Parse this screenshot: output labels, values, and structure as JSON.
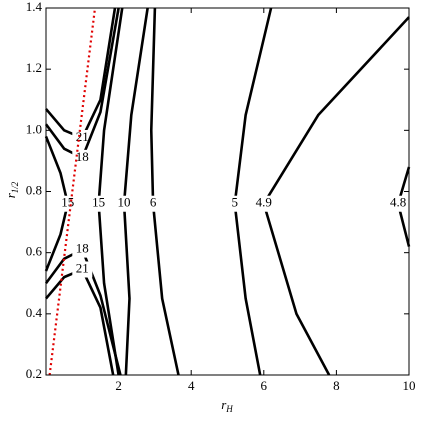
{
  "chart_data": {
    "type": "contour",
    "xlabel": "r",
    "xlabel_sub": "H",
    "ylabel": "r",
    "ylabel_sub": "1/2",
    "xlim": [
      0,
      10
    ],
    "xticks": [
      2,
      4,
      6,
      8,
      10
    ],
    "ylim": [
      0.2,
      1.4
    ],
    "yticks": [
      0.2,
      0.4,
      0.6,
      0.8,
      {
        "value": 1,
        "label": "1.0"
      },
      1.2,
      1.4
    ],
    "line_color": "#000000",
    "reference_color": "#e00000",
    "reference_line": {
      "x": [
        0.1,
        1.35
      ],
      "y": [
        0.2,
        1.4
      ]
    },
    "contours": [
      {
        "level": 21,
        "x": [
          0,
          0.5,
          1.0,
          1.5,
          1.9
        ],
        "y": [
          1.07,
          1.0,
          0.975,
          1.1,
          1.4
        ]
      },
      {
        "level": 18,
        "x": [
          0,
          0.5,
          1.0,
          1.5,
          2.0
        ],
        "y": [
          1.02,
          0.94,
          0.91,
          1.06,
          1.4
        ]
      },
      {
        "level": 15,
        "x": [
          0,
          0.4,
          0.6,
          0.4,
          0
        ],
        "y": [
          0.98,
          0.86,
          0.76,
          0.66,
          0.54
        ]
      },
      {
        "level": 15,
        "x": [
          2.1,
          1.6,
          1.45,
          1.6,
          2.0
        ],
        "y": [
          1.4,
          1.0,
          0.76,
          0.5,
          0.2
        ]
      },
      {
        "level": 10,
        "x": [
          2.8,
          2.35,
          2.15,
          2.3,
          2.2
        ],
        "y": [
          1.4,
          1.05,
          0.76,
          0.45,
          0.2
        ]
      },
      {
        "level": 6,
        "x": [
          3.0,
          2.9,
          2.95,
          3.2,
          3.65
        ],
        "y": [
          1.4,
          1.0,
          0.76,
          0.45,
          0.2
        ]
      },
      {
        "level": 5,
        "x": [
          6.2,
          5.5,
          5.2,
          5.5,
          5.9
        ],
        "y": [
          1.4,
          1.05,
          0.76,
          0.45,
          0.2
        ]
      },
      {
        "level": 4.9,
        "x": [
          10,
          7.5,
          6.0,
          6.9,
          7.8
        ],
        "y": [
          1.37,
          1.05,
          0.76,
          0.4,
          0.2
        ]
      },
      {
        "level": 4.8,
        "x": [
          10,
          9.7,
          10
        ],
        "y": [
          0.88,
          0.76,
          0.62
        ]
      },
      {
        "level": 18,
        "x": [
          0,
          0.5,
          1.0,
          1.5,
          2.05
        ],
        "y": [
          0.5,
          0.58,
          0.61,
          0.46,
          0.2
        ]
      },
      {
        "level": 21,
        "x": [
          0,
          0.5,
          1.0,
          1.5,
          1.85
        ],
        "y": [
          0.45,
          0.52,
          0.545,
          0.42,
          0.2
        ]
      }
    ]
  }
}
